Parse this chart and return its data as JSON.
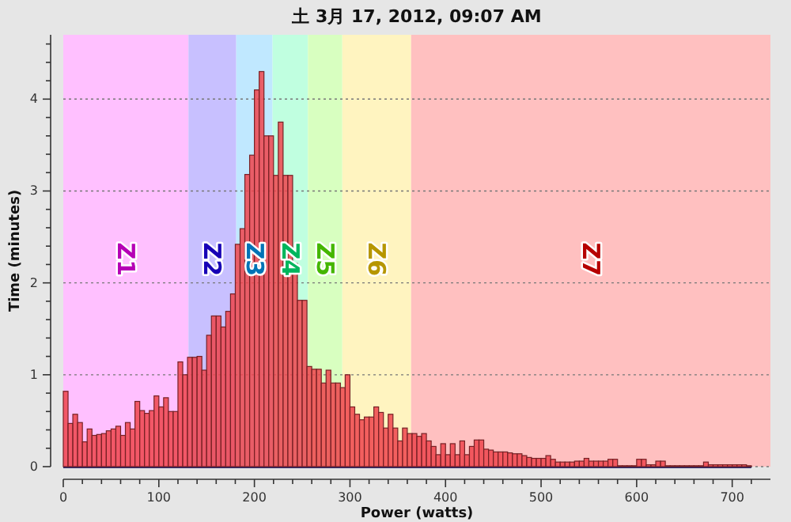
{
  "chart_data": {
    "type": "histogram",
    "title": "土 3月 17, 2012, 09:07 AM",
    "xlabel": "Power (watts)",
    "ylabel": "Time (minutes)",
    "bins": [
      0,
      5,
      10,
      15,
      20,
      25,
      30,
      35,
      40,
      45,
      50,
      55,
      60,
      65,
      70,
      75,
      80,
      85,
      90,
      95,
      100,
      105,
      110,
      115,
      120,
      125,
      130,
      135,
      140,
      145,
      150,
      155,
      160,
      165,
      170,
      175,
      180,
      185,
      190,
      195,
      200,
      205,
      210,
      215,
      220,
      225,
      230,
      235,
      240,
      245,
      250,
      255,
      260,
      265,
      270,
      275,
      280,
      285,
      290,
      295,
      300,
      305,
      310,
      315,
      320,
      325,
      330,
      335,
      340,
      345,
      350,
      355,
      360,
      365,
      370,
      375,
      380,
      385,
      390,
      395,
      400,
      405,
      410,
      415,
      420,
      425,
      430,
      435,
      440,
      445,
      450,
      455,
      460,
      465,
      470,
      475,
      480,
      485,
      490,
      495,
      500,
      505,
      510,
      515,
      520,
      525,
      530,
      535,
      540,
      545,
      550,
      555,
      560,
      565,
      570,
      575,
      580,
      585,
      590,
      595,
      600,
      605,
      610,
      615,
      620,
      625,
      630,
      635,
      640,
      645,
      650,
      655,
      660,
      665,
      670,
      675,
      680,
      685,
      690,
      695,
      700,
      705,
      710,
      715,
      720
    ],
    "values": [
      0.82,
      0.47,
      0.57,
      0.48,
      0.27,
      0.41,
      0.34,
      0.35,
      0.36,
      0.39,
      0.41,
      0.44,
      0.34,
      0.48,
      0.41,
      0.71,
      0.61,
      0.58,
      0.61,
      0.77,
      0.65,
      0.75,
      0.6,
      0.6,
      1.14,
      1.0,
      1.19,
      1.19,
      1.2,
      1.05,
      1.43,
      1.64,
      1.64,
      1.52,
      1.69,
      1.88,
      2.42,
      2.59,
      3.18,
      3.39,
      4.1,
      4.3,
      3.6,
      3.6,
      3.17,
      3.75,
      3.17,
      3.17,
      2.21,
      1.81,
      1.81,
      1.09,
      1.06,
      1.06,
      0.91,
      1.05,
      0.91,
      0.91,
      0.86,
      1.0,
      0.65,
      0.57,
      0.51,
      0.54,
      0.54,
      0.65,
      0.59,
      0.42,
      0.57,
      0.42,
      0.28,
      0.42,
      0.36,
      0.36,
      0.33,
      0.36,
      0.28,
      0.22,
      0.13,
      0.25,
      0.13,
      0.25,
      0.13,
      0.28,
      0.13,
      0.22,
      0.29,
      0.29,
      0.19,
      0.18,
      0.16,
      0.16,
      0.16,
      0.15,
      0.14,
      0.14,
      0.12,
      0.1,
      0.09,
      0.09,
      0.09,
      0.12,
      0.08,
      0.05,
      0.05,
      0.05,
      0.05,
      0.06,
      0.06,
      0.09,
      0.06,
      0.06,
      0.06,
      0.06,
      0.08,
      0.08,
      0.01,
      0.01,
      0.01,
      0.01,
      0.08,
      0.08,
      0.02,
      0.02,
      0.06,
      0.06,
      0.01,
      0.01,
      0.01,
      0.01,
      0.01,
      0.01,
      0.01,
      0.01,
      0.05,
      0.02,
      0.02,
      0.02,
      0.02,
      0.02,
      0.02,
      0.02,
      0.02,
      0.01
    ],
    "color": "#f0444c",
    "xlim": [
      0,
      740
    ],
    "ylim": [
      0,
      4.7
    ],
    "xticks": [
      0,
      {
        "value": 20,
        "label": null
      },
      {
        "value": 40,
        "label": null
      },
      {
        "value": 60,
        "label": null
      },
      {
        "value": 80,
        "label": null
      },
      100,
      {
        "value": 120,
        "label": null
      },
      {
        "value": 140,
        "label": null
      },
      {
        "value": 160,
        "label": null
      },
      {
        "value": 180,
        "label": null
      },
      200,
      {
        "value": 220,
        "label": null
      },
      {
        "value": 240,
        "label": null
      },
      {
        "value": 260,
        "label": null
      },
      {
        "value": 280,
        "label": null
      },
      300,
      {
        "value": 320,
        "label": null
      },
      {
        "value": 340,
        "label": null
      },
      {
        "value": 360,
        "label": null
      },
      {
        "value": 380,
        "label": null
      },
      400,
      {
        "value": 420,
        "label": null
      },
      {
        "value": 440,
        "label": null
      },
      {
        "value": 460,
        "label": null
      },
      {
        "value": 480,
        "label": null
      },
      500,
      {
        "value": 520,
        "label": null
      },
      {
        "value": 540,
        "label": null
      },
      {
        "value": 560,
        "label": null
      },
      {
        "value": 580,
        "label": null
      },
      600,
      {
        "value": 620,
        "label": null
      },
      {
        "value": 640,
        "label": null
      },
      {
        "value": 660,
        "label": null
      },
      {
        "value": 680,
        "label": null
      },
      700,
      {
        "value": 720,
        "label": null
      }
    ],
    "yticks": [
      0,
      {
        "value": 0.2,
        "label": null
      },
      {
        "value": 0.4,
        "label": null
      },
      {
        "value": 0.6,
        "label": null
      },
      {
        "value": 0.8,
        "label": null
      },
      1,
      {
        "value": 1.2,
        "label": null
      },
      {
        "value": 1.4,
        "label": null
      },
      {
        "value": 1.6,
        "label": null
      },
      {
        "value": 1.8,
        "label": null
      },
      2,
      {
        "value": 2.2,
        "label": null
      },
      {
        "value": 2.4,
        "label": null
      },
      {
        "value": 2.6,
        "label": null
      },
      {
        "value": 2.8,
        "label": null
      },
      3,
      {
        "value": 3.2,
        "label": null
      },
      {
        "value": 3.4,
        "label": null
      },
      {
        "value": 3.6,
        "label": null
      },
      {
        "value": 3.8,
        "label": null
      },
      4,
      {
        "value": 4.2,
        "label": null
      },
      {
        "value": 4.4,
        "label": null
      },
      {
        "value": 4.6,
        "label": null
      }
    ],
    "grid": "y",
    "bands": [
      {
        "axis": "x",
        "from": 0,
        "to": 131,
        "label": "Z1",
        "color": "#ffc0ff"
      },
      {
        "axis": "x",
        "from": 131,
        "to": 181,
        "label": "Z2",
        "color": "#c8c0ff"
      },
      {
        "axis": "x",
        "from": 181,
        "to": 219,
        "label": "Z3",
        "color": "#c0e8ff"
      },
      {
        "axis": "x",
        "from": 219,
        "to": 256,
        "label": "Z4",
        "color": "#c0ffe0"
      },
      {
        "axis": "x",
        "from": 256,
        "to": 292,
        "label": "Z5",
        "color": "#d8ffc0"
      },
      {
        "axis": "x",
        "from": 292,
        "to": 364,
        "label": "Z6",
        "color": "#fff4c0"
      },
      {
        "axis": "x",
        "from": 364,
        "to": 740,
        "label": "Z7",
        "color": "#ffc0c0"
      }
    ]
  }
}
